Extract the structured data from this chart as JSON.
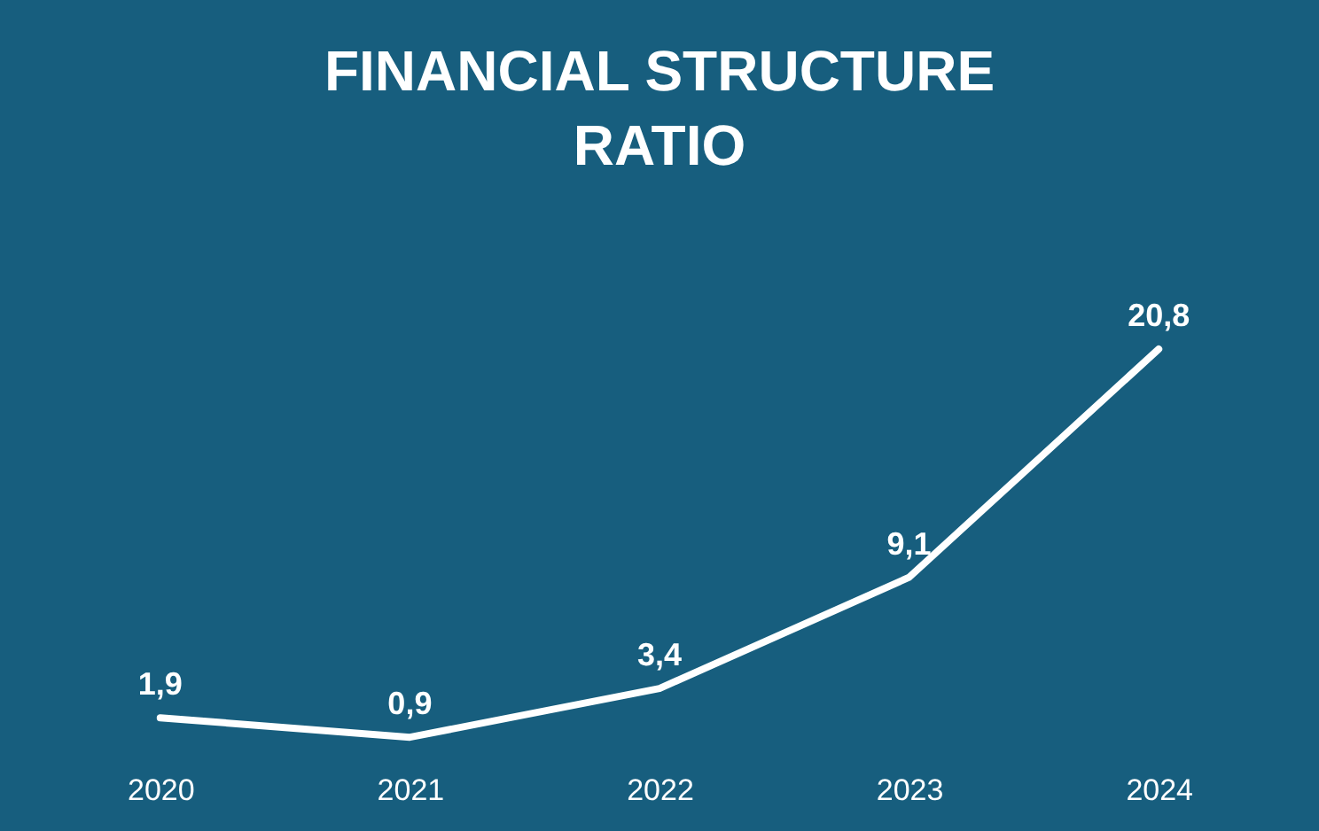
{
  "chart_data": {
    "type": "line",
    "title": "FINANCIAL STRUCTURE RATIO",
    "categories": [
      "2020",
      "2021",
      "2022",
      "2023",
      "2024"
    ],
    "series": [
      {
        "color": "#ffffff",
        "values": [
          1.9,
          0.9,
          3.4,
          9.1,
          20.8
        ],
        "value_labels": [
          "1,9",
          "0,9",
          "3,4",
          "9,1",
          "20,8"
        ]
      }
    ],
    "marker": "none",
    "line_style": "solid",
    "grid": false,
    "tick_labels": "x"
  }
}
